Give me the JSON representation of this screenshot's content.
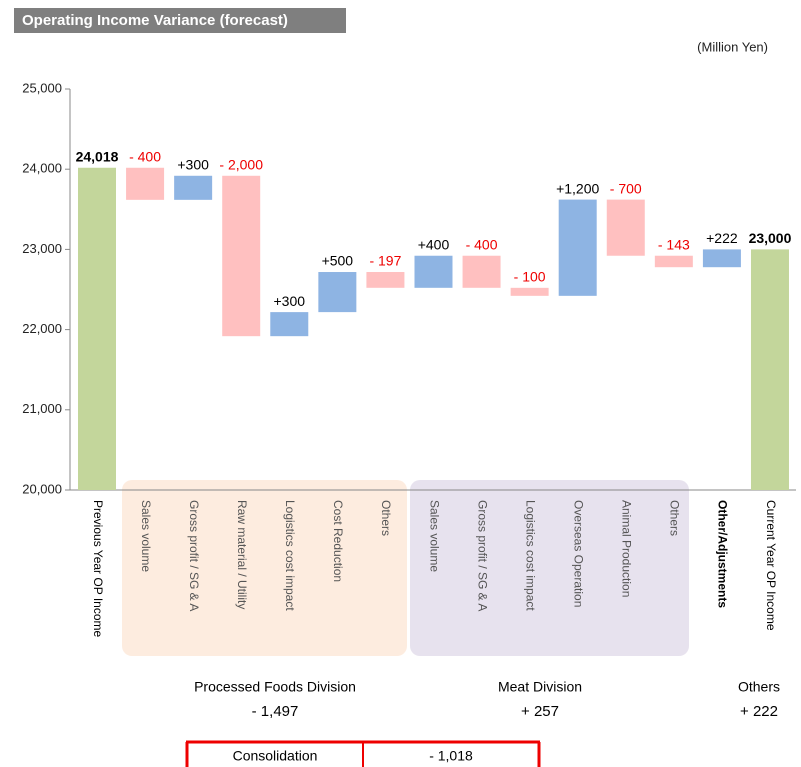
{
  "chart_data": {
    "type": "waterfall",
    "title": "Operating Income Variance (forecast)",
    "unit": "(Million Yen)",
    "categories": [
      "Previous Year OP Income",
      "Sales volume",
      "Gross profit / SG & A",
      "Raw material / Utility",
      "Logistics cost impact",
      "Cost Reduction",
      "Others",
      "Sales volume",
      "Gross profit / SG & A",
      "Logistics cost impact",
      "Overseas Operation",
      "Animal Production",
      "Others",
      "Other/Adjustments",
      "Current Year OP Income"
    ],
    "values": [
      24018,
      -400,
      300,
      -2000,
      300,
      500,
      -197,
      400,
      -400,
      -100,
      1200,
      -700,
      -143,
      222,
      23000
    ],
    "value_labels": [
      "24,018",
      "- 400",
      "+300",
      "- 2,000",
      "+300",
      "+500",
      "- 197",
      "+400",
      "- 400",
      "- 100",
      "+1,200",
      "- 700",
      "- 143",
      "+222",
      "23,000"
    ],
    "measures": [
      "total",
      "relative",
      "relative",
      "relative",
      "relative",
      "relative",
      "relative",
      "relative",
      "relative",
      "relative",
      "relative",
      "relative",
      "relative",
      "relative",
      "total"
    ],
    "colors": {
      "total": "#c3d69b",
      "increase": "#8eb4e3",
      "decrease": "#ffc0c0"
    },
    "ylim": [
      20000,
      25000
    ],
    "yticks": [
      {
        "value": 20000,
        "label": "20,000"
      },
      {
        "value": 21000,
        "label": "21,000"
      },
      {
        "value": 22000,
        "label": "22,000"
      },
      {
        "value": 23000,
        "label": "23,000"
      },
      {
        "value": 24000,
        "label": "24,000"
      },
      {
        "value": 25000,
        "label": "25,000"
      }
    ],
    "groups": [
      {
        "name": "Processed Foods Division",
        "total": "- 1,497"
      },
      {
        "name": "Meat Division",
        "total": "+ 257"
      },
      {
        "name": "Others",
        "total": "+ 222"
      }
    ],
    "consolidation": {
      "label": "Consolidation",
      "total": "- 1,018"
    }
  }
}
